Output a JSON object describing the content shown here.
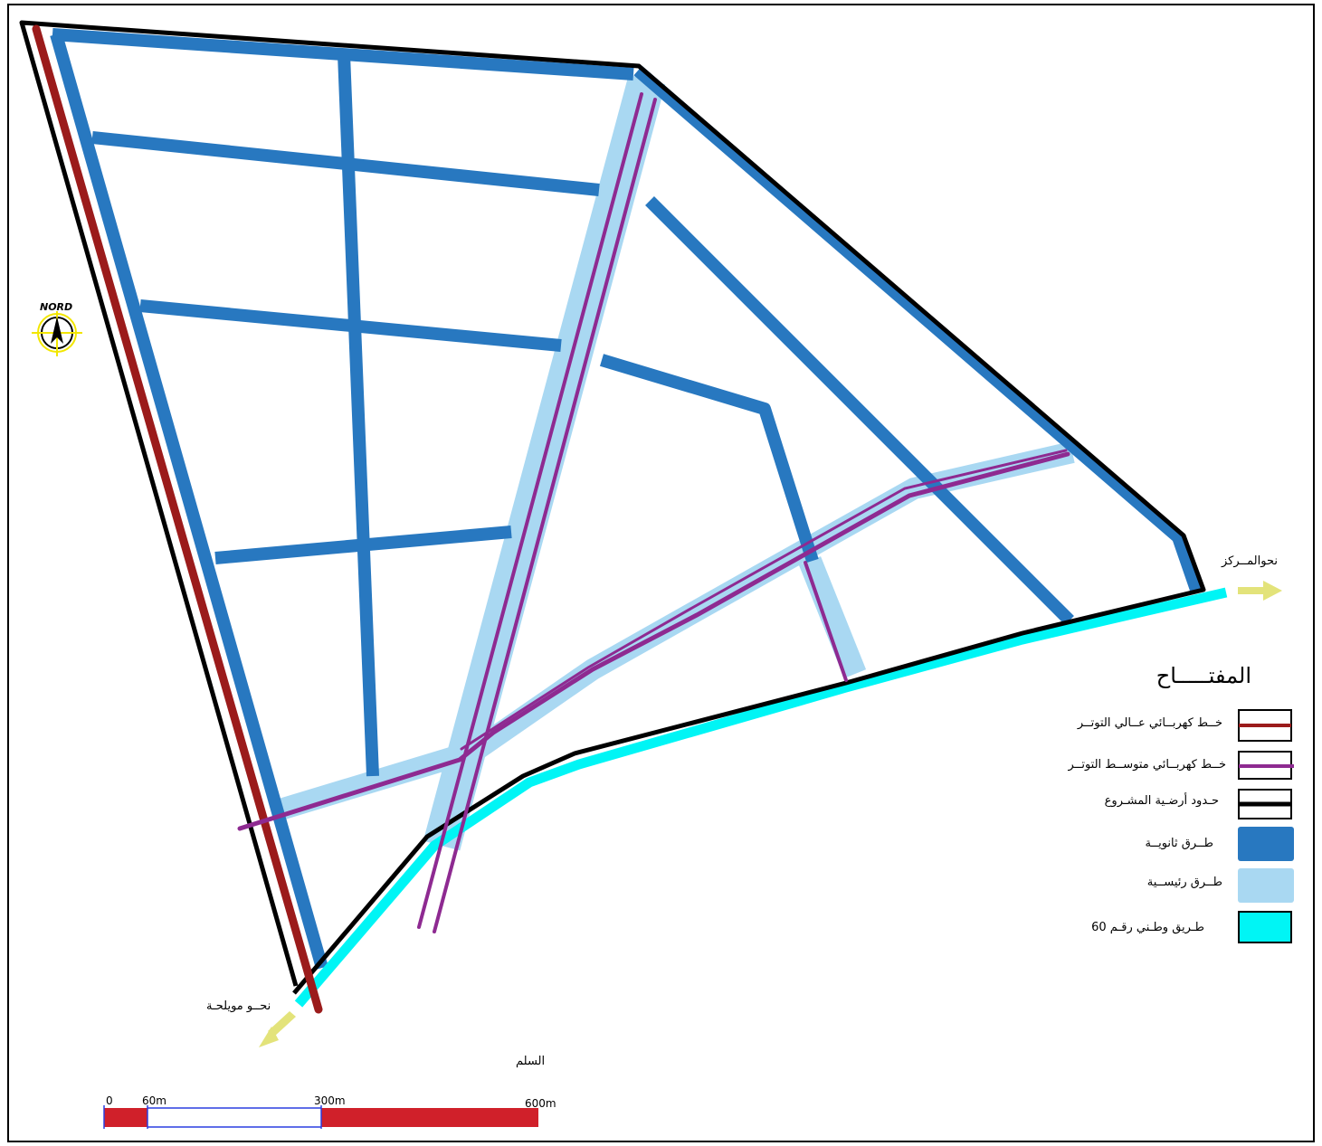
{
  "map": {
    "north_label": "NORD",
    "towards_center": "نحوالمــركز",
    "towards_mouilha": "نحــو مويلحـة",
    "scale_title": "السلم",
    "scale_ticks": [
      "0",
      "60m",
      "300m",
      "600m"
    ]
  },
  "legend": {
    "title": "المفتـــــاح",
    "items": [
      {
        "label": "خــط كهربــائي عــالي التوتــر",
        "color": "#9b1b1b",
        "icon": "dark-red-line"
      },
      {
        "label": "خــط كهربــائي متوســط التوتــر",
        "color": "#8e2a91",
        "icon": "purple-line"
      },
      {
        "label": "حـدود أرضـية المشـروع",
        "color": "#000000",
        "icon": "black-line"
      },
      {
        "label": "طــرق ثانويــة",
        "color": "#2878c0",
        "icon": "blue-fill"
      },
      {
        "label": "طــرق رئيســية",
        "color": "#a9d8f2",
        "icon": "light-blue-fill"
      },
      {
        "label": "طـريق وطـني رقـم 60",
        "color": "#00f5f5",
        "icon": "cyan-fill"
      }
    ]
  },
  "colors": {
    "secondary_roads": "#2878c0",
    "main_roads": "#a9d8f2",
    "national_road": "#00f5f5",
    "high_voltage": "#9b1b1b",
    "medium_voltage": "#8e2a91",
    "boundary": "#000000",
    "arrows": "#e3e37a",
    "scale_red": "#d0202a",
    "scale_blue": "#2a3fe0"
  }
}
